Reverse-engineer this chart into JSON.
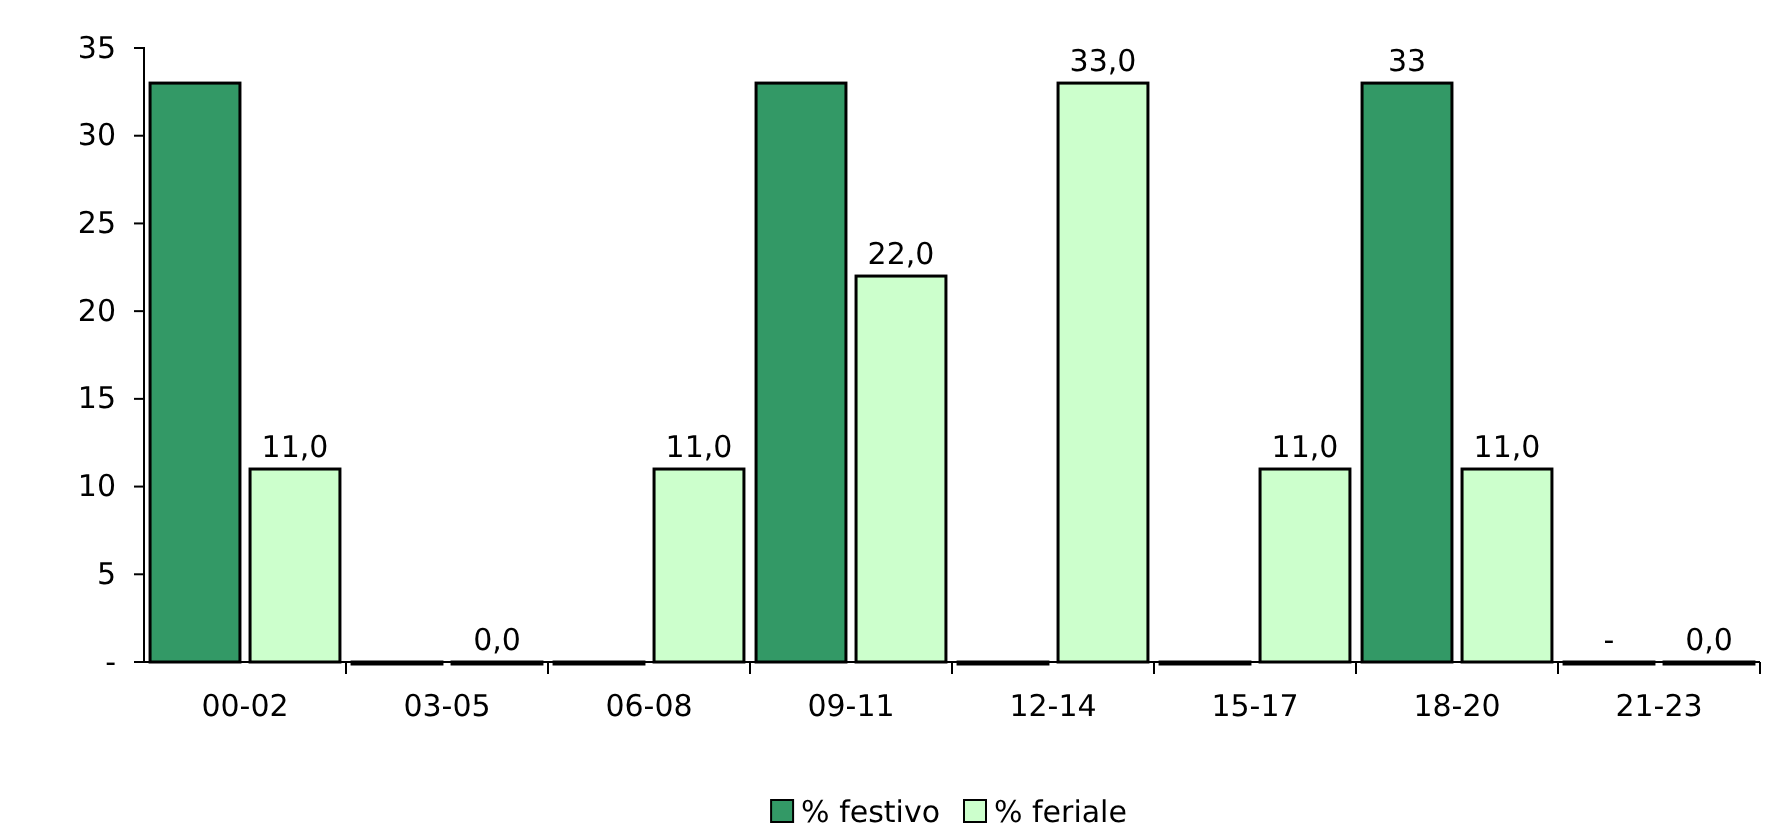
{
  "chart_data": {
    "type": "bar",
    "categories": [
      "00-02",
      "03-05",
      "06-08",
      "09-11",
      "12-14",
      "15-17",
      "18-20",
      "21-23"
    ],
    "series": [
      {
        "name": "% festivo",
        "color": "#339966",
        "values": [
          33,
          0,
          0,
          33,
          0,
          0,
          33,
          0
        ],
        "value_labels": [
          null,
          null,
          null,
          null,
          null,
          null,
          "33",
          "-"
        ]
      },
      {
        "name": "% feriale",
        "color": "#ccffcc",
        "values": [
          11,
          0,
          11,
          22,
          33,
          11,
          11,
          0
        ],
        "value_labels": [
          "11,0",
          "0,0",
          "11,0",
          "22,0",
          "33,0",
          "11,0",
          "11,0",
          "0,0"
        ]
      }
    ],
    "ylim": [
      0,
      35
    ],
    "yticks": [
      {
        "value": 0,
        "label": "-"
      },
      5,
      10,
      15,
      20,
      25,
      30,
      35
    ],
    "grid": false,
    "legend": "bottom"
  }
}
